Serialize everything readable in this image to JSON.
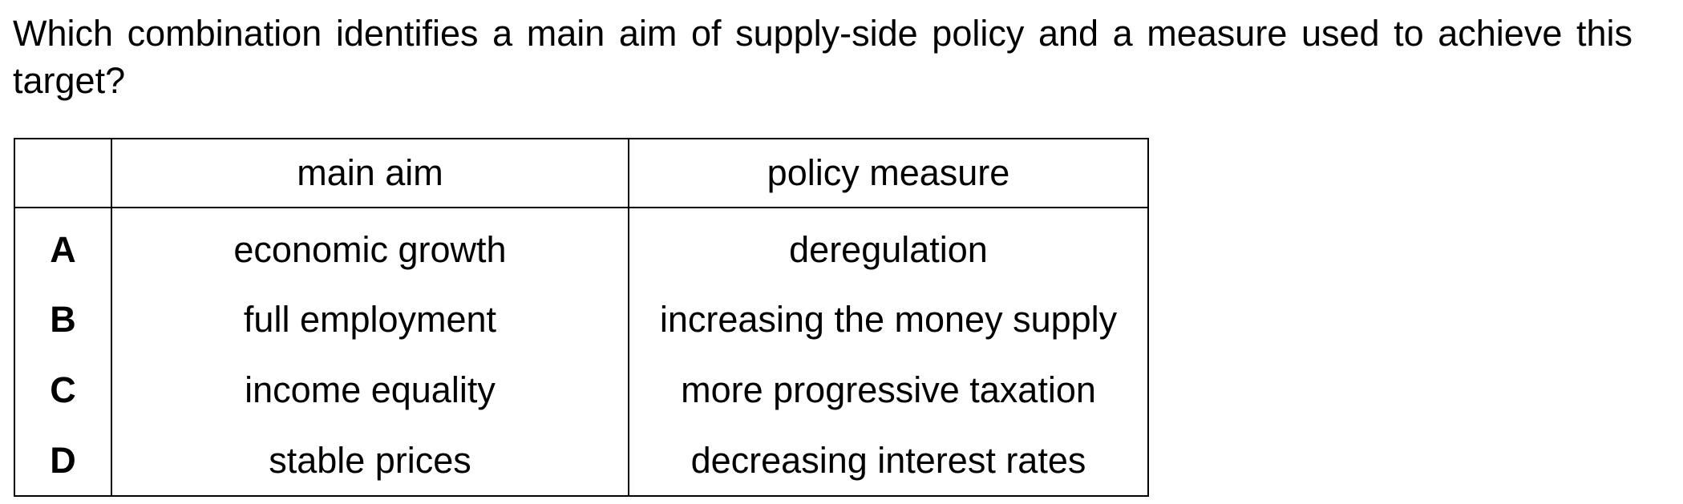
{
  "question": {
    "text": "Which combination identifies a main aim of supply-side policy and a measure used to achieve this target?"
  },
  "table": {
    "headers": {
      "letter": "",
      "main_aim": "main aim",
      "policy_measure": "policy measure"
    },
    "rows": [
      {
        "letter": "A",
        "main_aim": "economic growth",
        "policy_measure": "deregulation"
      },
      {
        "letter": "B",
        "main_aim": "full employment",
        "policy_measure": "increasing the money supply"
      },
      {
        "letter": "C",
        "main_aim": "income equality",
        "policy_measure": "more progressive taxation"
      },
      {
        "letter": "D",
        "main_aim": "stable prices",
        "policy_measure": "decreasing interest rates"
      }
    ]
  }
}
